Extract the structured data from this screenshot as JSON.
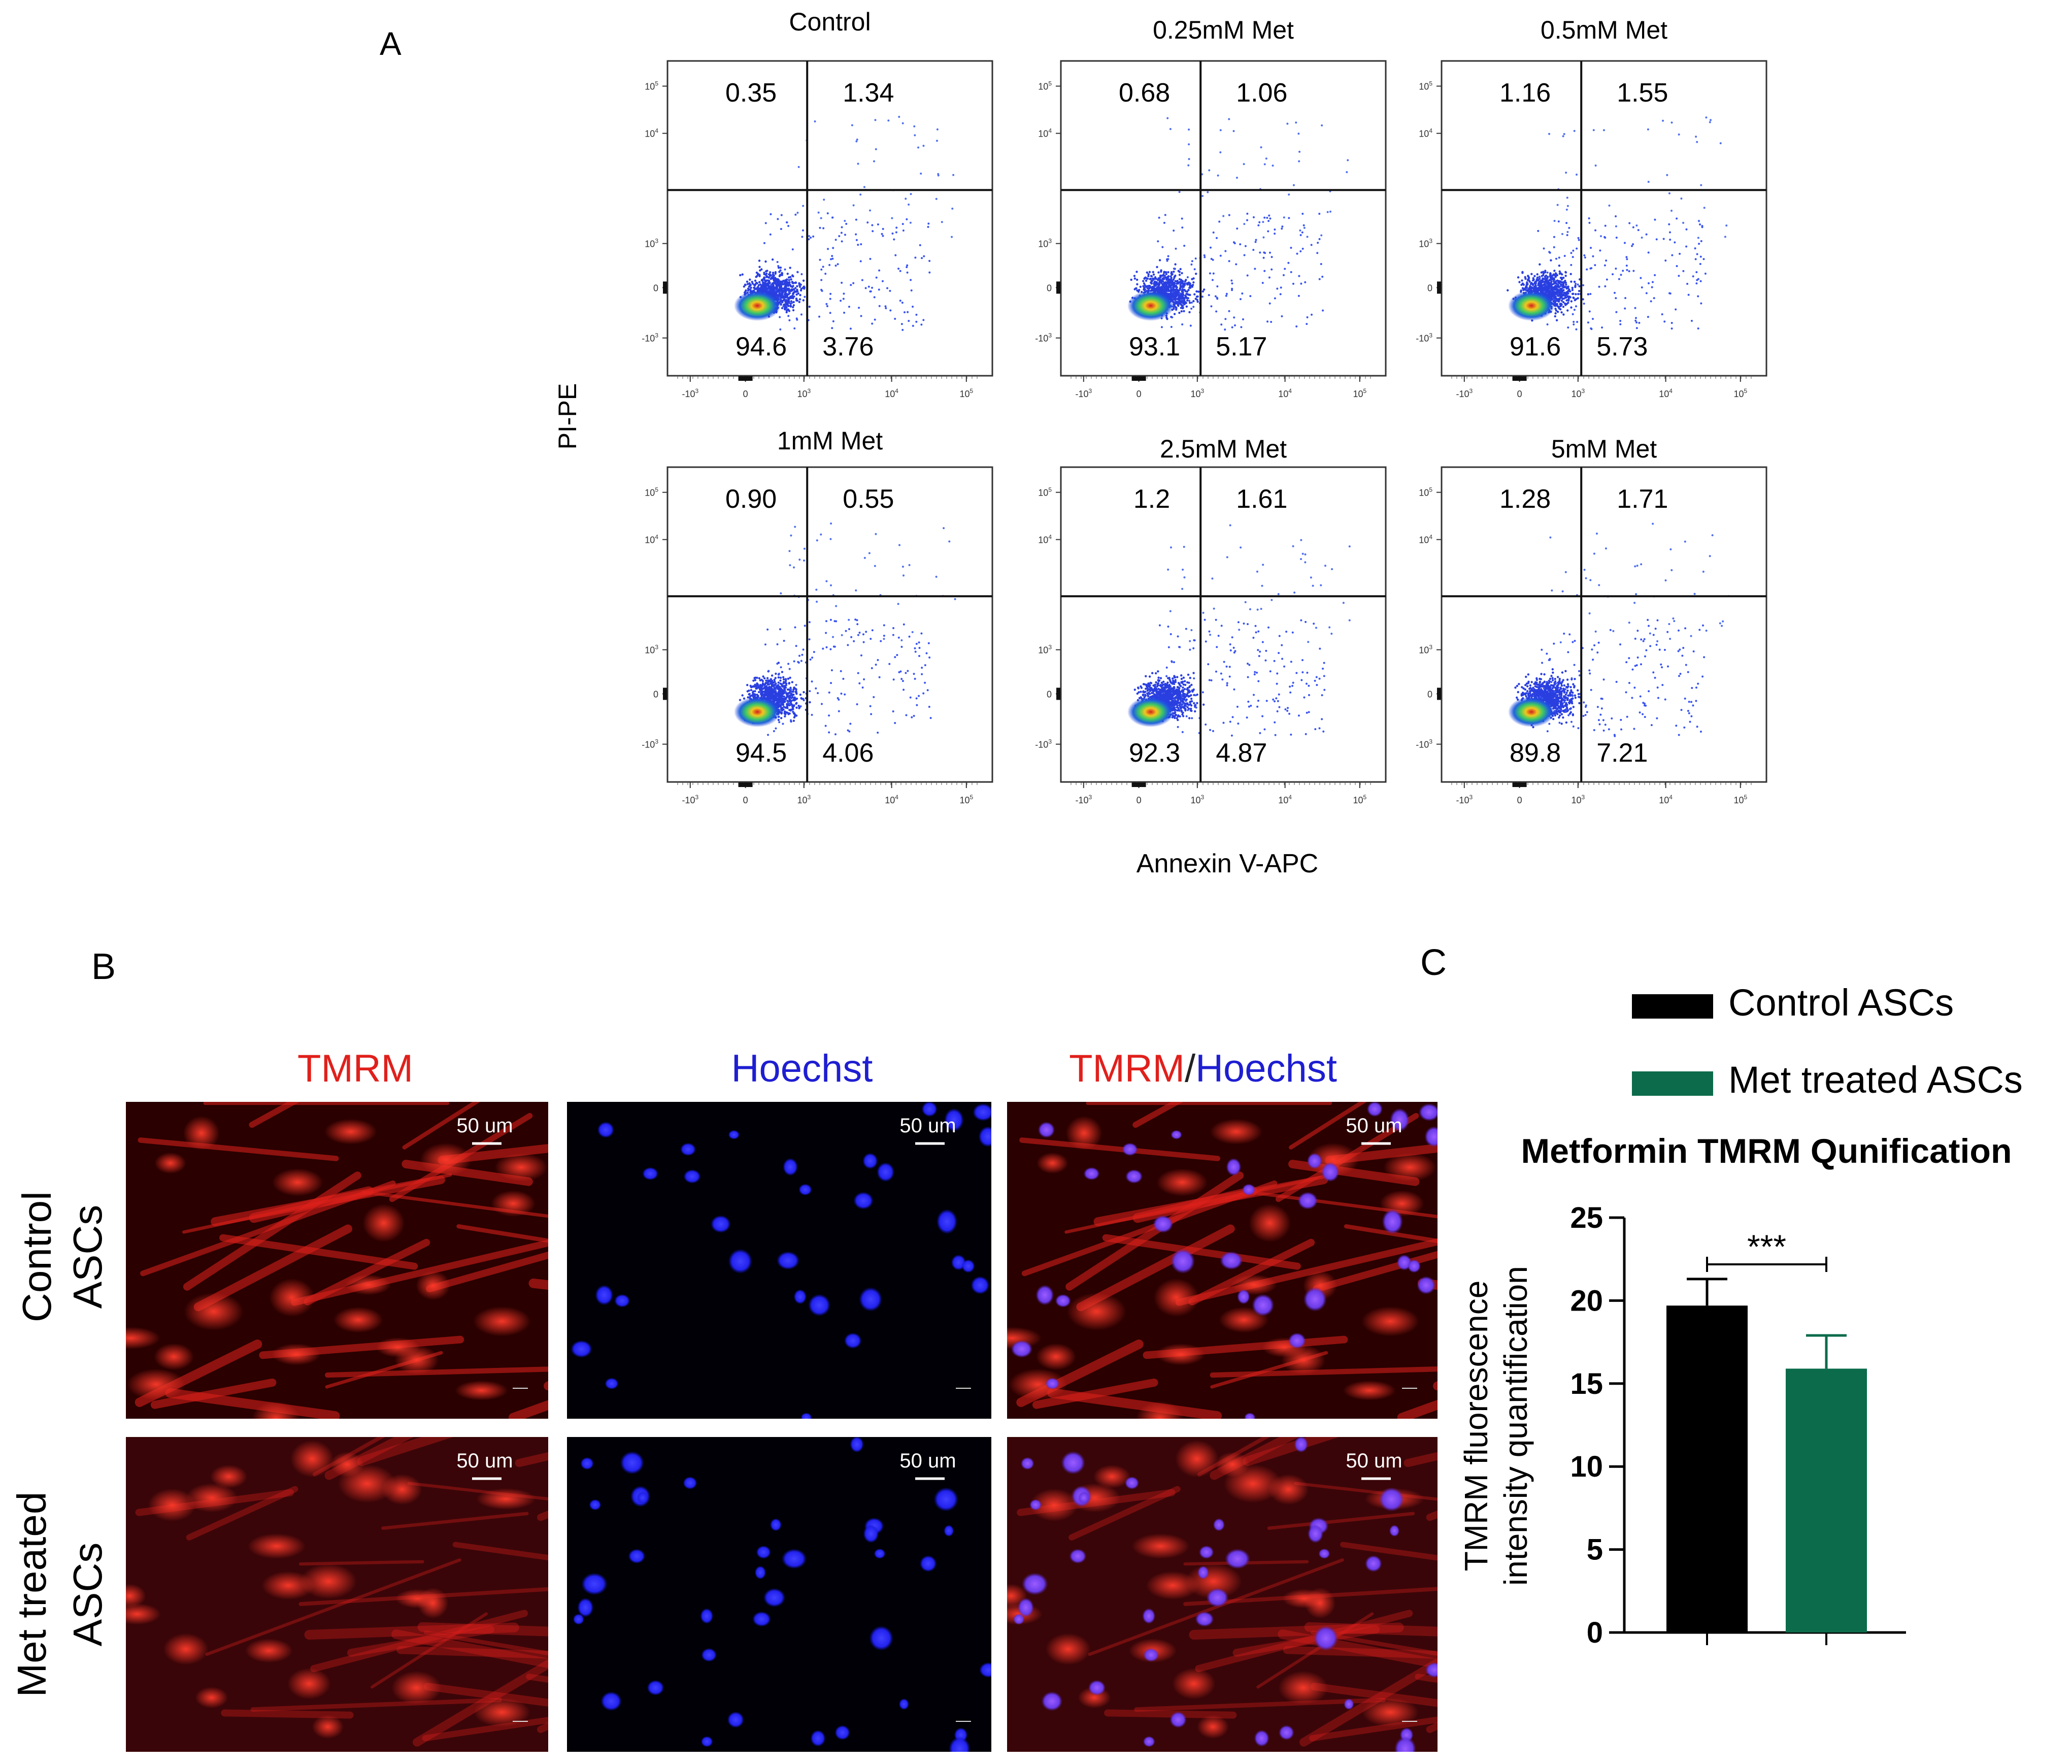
{
  "panel_labels": {
    "a": "A",
    "b": "B",
    "c": "C"
  },
  "flow": {
    "y_axis_label": "PI-PE",
    "x_axis_label": "Annexin V-APC",
    "tick_labels": [
      "-10",
      "0",
      "10",
      "10",
      "10"
    ],
    "tick_exponents": [
      "3",
      "",
      "3",
      "4",
      "5"
    ],
    "plots": [
      {
        "title": "Control",
        "q_ul": "0.35",
        "q_ur": "1.34",
        "q_ll": "94.6",
        "q_lr": "3.76"
      },
      {
        "title": "0.25mM Met",
        "q_ul": "0.68",
        "q_ur": "1.06",
        "q_ll": "93.1",
        "q_lr": "5.17"
      },
      {
        "title": "0.5mM Met",
        "q_ul": "1.16",
        "q_ur": "1.55",
        "q_ll": "91.6",
        "q_lr": "5.73"
      },
      {
        "title": "1mM Met",
        "q_ul": "0.90",
        "q_ur": "0.55",
        "q_ll": "94.5",
        "q_lr": "4.06"
      },
      {
        "title": "2.5mM Met",
        "q_ul": "1.2",
        "q_ur": "1.61",
        "q_ll": "92.3",
        "q_lr": "4.87"
      },
      {
        "title": "5mM Met",
        "q_ul": "1.28",
        "q_ur": "1.71",
        "q_ll": "89.8",
        "q_lr": "7.21"
      }
    ]
  },
  "microscopy": {
    "col_headers": {
      "tmrm": "TMRM",
      "hoechst": "Hoechst",
      "merge_a": "TMRM",
      "merge_sep": "/",
      "merge_b": "Hoechst"
    },
    "row_labels": [
      {
        "line1": "Control",
        "line2": "ASCs"
      },
      {
        "line1": "Met treated",
        "line2": "ASCs"
      }
    ],
    "scale_bar": "50 um",
    "colors": {
      "tmrm": "#e0201c",
      "hoechst": "#1e1ed2"
    }
  },
  "chart_data": {
    "type": "bar",
    "title": "Metformin TMRM Qunification",
    "ylabel_line1": "TMRM fluorescence",
    "ylabel_line2": "intensity quantification",
    "ylim": [
      0,
      25
    ],
    "yticks": [
      "0",
      "5",
      "10",
      "15",
      "20",
      "25"
    ],
    "series": [
      {
        "name": "Control ASCs",
        "value": 19.7,
        "error": 1.6,
        "color": "#000000"
      },
      {
        "name": "Met treated ASCs",
        "value": 15.9,
        "error": 2.0,
        "color": "#0b6b4b"
      }
    ],
    "significance": "***"
  }
}
